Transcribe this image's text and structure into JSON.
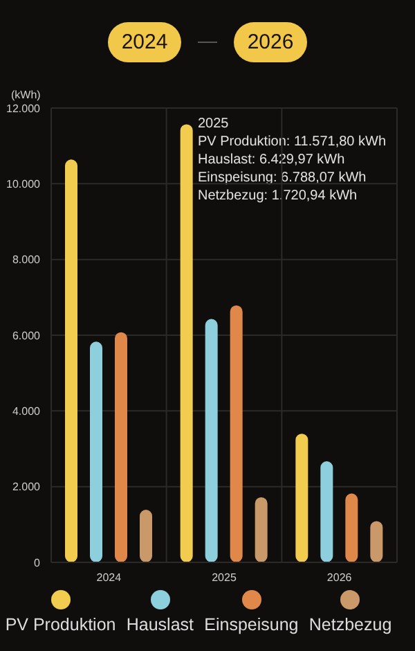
{
  "chart_data": {
    "type": "bar",
    "ylabel": "(kWh)",
    "annotations": [
      "2024",
      "2026",
      "2025",
      "PV Produktion: 11.571,80 kWh",
      "Hauslast: 6.429,97 kWh",
      "Einspeisung: 6.788,07 kWh",
      "Netzbezug: 1.720,94 kWh"
    ],
    "categories": [
      "2024",
      "2025",
      "2026"
    ],
    "series": [
      {
        "name": "PV Produktion",
        "color": "#f2cc4e",
        "values": [
          10640,
          11571.8,
          3400
        ]
      },
      {
        "name": "Hauslast",
        "color": "#8dcfdc",
        "values": [
          5830,
          6429.97,
          2670
        ]
      },
      {
        "name": "Einspeisung",
        "color": "#e0884a",
        "values": [
          6080,
          6788.07,
          1820
        ]
      },
      {
        "name": "Netzbezug",
        "color": "#c9996a",
        "values": [
          1390,
          1720.94,
          1090
        ]
      }
    ],
    "ylim": [
      0,
      12000
    ],
    "yticks": [
      0,
      {
        "value": 2000,
        "label": "2.000"
      },
      {
        "value": 4000,
        "label": "4.000"
      },
      {
        "value": 6000,
        "label": "6.000"
      },
      {
        "value": 8000,
        "label": "8.000"
      },
      {
        "value": 10000,
        "label": "10.000"
      },
      {
        "value": 12000,
        "label": "12.000"
      }
    ],
    "grid": true,
    "legend": "bottom"
  }
}
